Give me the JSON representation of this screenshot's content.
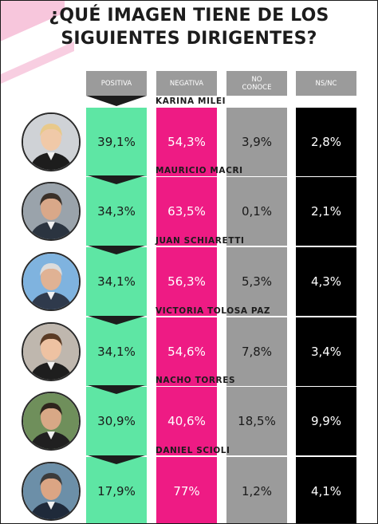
{
  "title": {
    "line1": "¿QUÉ IMAGEN TIENE DE LOS",
    "line2": "SIGUIENTES DIRIGENTES?"
  },
  "columns": [
    {
      "line1": "POSITIVA",
      "line2": ""
    },
    {
      "line1": "NEGATIVA",
      "line2": ""
    },
    {
      "line1": "NO",
      "line2": "CONOCE"
    },
    {
      "line1": "NS/NC",
      "line2": ""
    }
  ],
  "colors": {
    "positiva": "#5ee6a4",
    "negativa": "#ee1b84",
    "no_conoce": "#9b9b9b",
    "ns_nc": "#000000",
    "accent_pink": "#f7c6dc"
  },
  "rows": [
    {
      "name": "KARINA MILEI",
      "values": [
        "39,1%",
        "54,3%",
        "3,9%",
        "2,8%"
      ]
    },
    {
      "name": "MAURICIO MACRI",
      "values": [
        "34,3%",
        "63,5%",
        "0,1%",
        "2,1%"
      ]
    },
    {
      "name": "JUAN SCHIARETTI",
      "values": [
        "34,1%",
        "56,3%",
        "5,3%",
        "4,3%"
      ]
    },
    {
      "name": "VICTORIA TOLOSA PAZ",
      "values": [
        "34,1%",
        "54,6%",
        "7,8%",
        "3,4%"
      ]
    },
    {
      "name": "NACHO TORRES",
      "values": [
        "30,9%",
        "40,6%",
        "18,5%",
        "9,9%"
      ]
    },
    {
      "name": "DANIEL SCIOLI",
      "values": [
        "17,9%",
        "77%",
        "1,2%",
        "4,1%"
      ]
    }
  ],
  "chart_data": {
    "type": "table",
    "title": "¿QUÉ IMAGEN TIENE DE LOS SIGUIENTES DIRIGENTES?",
    "columns": [
      "POSITIVA",
      "NEGATIVA",
      "NO CONOCE",
      "NS/NC"
    ],
    "categories": [
      "KARINA MILEI",
      "MAURICIO MACRI",
      "JUAN SCHIARETTI",
      "VICTORIA TOLOSA PAZ",
      "NACHO TORRES",
      "DANIEL SCIOLI"
    ],
    "series": [
      {
        "name": "POSITIVA",
        "values": [
          39.1,
          34.3,
          34.1,
          34.1,
          30.9,
          17.9
        ]
      },
      {
        "name": "NEGATIVA",
        "values": [
          54.3,
          63.5,
          56.3,
          54.6,
          40.6,
          77
        ]
      },
      {
        "name": "NO CONOCE",
        "values": [
          3.9,
          0.1,
          5.3,
          7.8,
          18.5,
          1.2
        ]
      },
      {
        "name": "NS/NC",
        "values": [
          2.8,
          2.1,
          4.3,
          3.4,
          9.9,
          4.1
        ]
      }
    ]
  }
}
